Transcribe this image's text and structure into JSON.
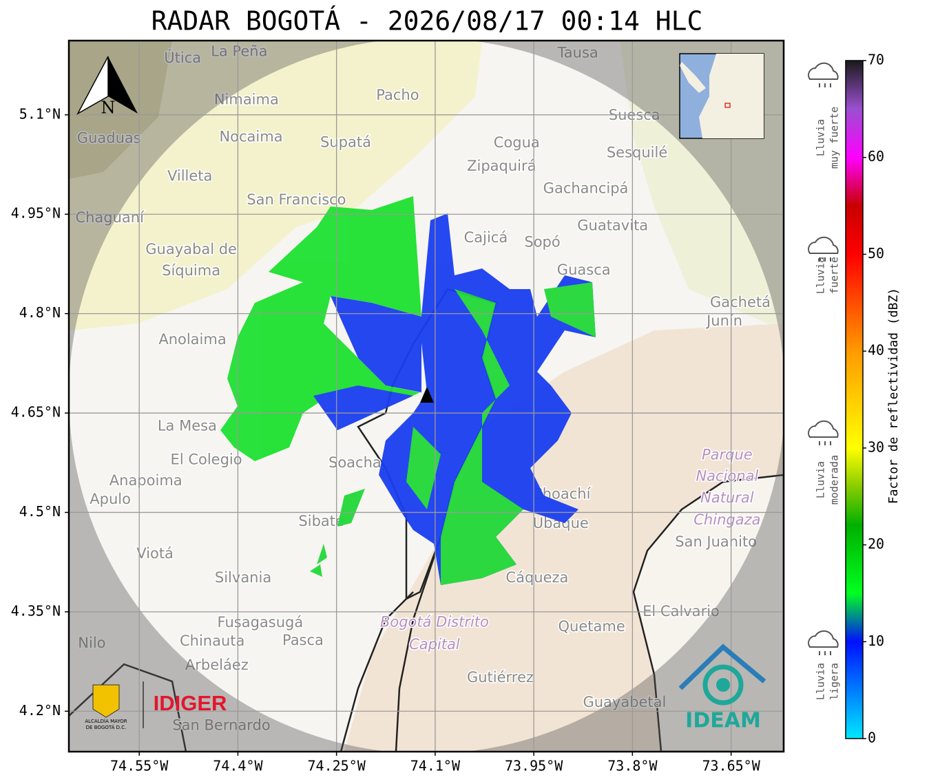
{
  "title": "RADAR BOGOTÁ - 2026/08/17 00:14 HLC",
  "map": {
    "lonlim": [
      -74.657,
      -73.57
    ],
    "latlim": [
      4.139,
      5.212
    ],
    "lon_ticks": [
      {
        "value": -74.55,
        "label": "74.55°W"
      },
      {
        "value": -74.4,
        "label": "74.4°W"
      },
      {
        "value": -74.25,
        "label": "74.25°W"
      },
      {
        "value": -74.1,
        "label": "74.1°W"
      },
      {
        "value": -73.95,
        "label": "73.95°W"
      },
      {
        "value": -73.8,
        "label": "73.8°W"
      },
      {
        "value": -73.65,
        "label": "73.65°W"
      }
    ],
    "lat_ticks": [
      {
        "value": 5.1,
        "label": "5.1°N"
      },
      {
        "value": 4.95,
        "label": "4.95°N"
      },
      {
        "value": 4.8,
        "label": "4.8°N"
      },
      {
        "value": 4.65,
        "label": "4.65°N"
      },
      {
        "value": 4.5,
        "label": "4.5°N"
      },
      {
        "value": 4.35,
        "label": "4.35°N"
      },
      {
        "value": 4.2,
        "label": "4.2°N"
      }
    ],
    "grid": true,
    "north_label": "N",
    "places": [
      {
        "name": "Útica",
        "lon": -74.484,
        "lat": 5.185
      },
      {
        "name": "La Peña",
        "lon": -74.398,
        "lat": 5.195
      },
      {
        "name": "Tausa",
        "lon": -73.883,
        "lat": 5.193
      },
      {
        "name": "Pacho",
        "lon": -74.157,
        "lat": 5.129
      },
      {
        "name": "Nimaima",
        "lon": -74.387,
        "lat": 5.122
      },
      {
        "name": "Guaduas",
        "lon": -74.596,
        "lat": 5.064
      },
      {
        "name": "Nocaima",
        "lon": -74.38,
        "lat": 5.066
      },
      {
        "name": "Supatá",
        "lon": -74.236,
        "lat": 5.058
      },
      {
        "name": "Cogua",
        "lon": -73.976,
        "lat": 5.057
      },
      {
        "name": "Suesca",
        "lon": -73.797,
        "lat": 5.099
      },
      {
        "name": "Zipaquirá",
        "lon": -73.999,
        "lat": 5.022
      },
      {
        "name": "Sesquilé",
        "lon": -73.793,
        "lat": 5.042
      },
      {
        "name": "Villeta",
        "lon": -74.473,
        "lat": 5.007
      },
      {
        "name": "Gachancipá",
        "lon": -73.871,
        "lat": 4.988
      },
      {
        "name": "San Francisco",
        "lon": -74.311,
        "lat": 4.971
      },
      {
        "name": "Chaguaní",
        "lon": -74.595,
        "lat": 4.944
      },
      {
        "name": "Guatavita",
        "lon": -73.83,
        "lat": 4.932
      },
      {
        "name": "Cajicá",
        "lon": -74.023,
        "lat": 4.914
      },
      {
        "name": "Sopó",
        "lon": -73.937,
        "lat": 4.907
      },
      {
        "name": "Guayabal de",
        "lon": -74.471,
        "lat": 4.896
      },
      {
        "name": "Síquima",
        "lon": -74.471,
        "lat": 4.864
      },
      {
        "name": "Guasca",
        "lon": -73.874,
        "lat": 4.865
      },
      {
        "name": "Gachetá",
        "lon": -73.636,
        "lat": 4.816
      },
      {
        "name": "Junín",
        "lon": -73.66,
        "lat": 4.788
      },
      {
        "name": "Anolaima",
        "lon": -74.469,
        "lat": 4.76
      },
      {
        "name": "La Mesa",
        "lon": -74.477,
        "lat": 4.63
      },
      {
        "name": "El Colegio",
        "lon": -74.448,
        "lat": 4.579
      },
      {
        "name": "Soacha",
        "lon": -74.222,
        "lat": 4.574
      },
      {
        "name": "Anapoima",
        "lon": -74.54,
        "lat": 4.547
      },
      {
        "name": "Apulo",
        "lon": -74.594,
        "lat": 4.519
      },
      {
        "name": "Choachí",
        "lon": -73.908,
        "lat": 4.527
      },
      {
        "name": "Ubaque",
        "lon": -73.909,
        "lat": 4.483
      },
      {
        "name": "Sibaté",
        "lon": -74.273,
        "lat": 4.486
      },
      {
        "name": "San Juanito",
        "lon": -73.673,
        "lat": 4.455
      },
      {
        "name": "Viotá",
        "lon": -74.526,
        "lat": 4.437
      },
      {
        "name": "Silvania",
        "lon": -74.392,
        "lat": 4.401
      },
      {
        "name": "Cáqueza",
        "lon": -73.945,
        "lat": 4.401
      },
      {
        "name": "El Calvario",
        "lon": -73.726,
        "lat": 4.35
      },
      {
        "name": "Fusagasugá",
        "lon": -74.366,
        "lat": 4.333
      },
      {
        "name": "Quetame",
        "lon": -73.862,
        "lat": 4.327
      },
      {
        "name": "Nilo",
        "lon": -74.622,
        "lat": 4.302
      },
      {
        "name": "Chinauta",
        "lon": -74.439,
        "lat": 4.305
      },
      {
        "name": "Pasca",
        "lon": -74.301,
        "lat": 4.306
      },
      {
        "name": "Arbeláez",
        "lon": -74.432,
        "lat": 4.269
      },
      {
        "name": "Gutiérrez",
        "lon": -74.001,
        "lat": 4.25
      },
      {
        "name": "Guayabetal",
        "lon": -73.812,
        "lat": 4.213
      },
      {
        "name": "San Bernardo",
        "lon": -74.425,
        "lat": 4.178
      },
      {
        "name": "Bogotá Distrito",
        "lon": -74.101,
        "lat": 4.334,
        "style": "park"
      },
      {
        "name": "Capital",
        "lon": -74.101,
        "lat": 4.3,
        "style": "park"
      },
      {
        "name": "Parque",
        "lon": -73.656,
        "lat": 4.586,
        "style": "park"
      },
      {
        "name": "Nacional",
        "lon": -73.656,
        "lat": 4.554,
        "style": "park"
      },
      {
        "name": "Natural",
        "lon": -73.656,
        "lat": 4.521,
        "style": "park"
      },
      {
        "name": "Chingaza",
        "lon": -73.656,
        "lat": 4.488,
        "style": "park"
      }
    ]
  },
  "colorbar": {
    "label": "Factor de reflectividad (dBZ)",
    "lim": [
      0,
      70
    ],
    "ticks": [
      0,
      10,
      20,
      30,
      40,
      50,
      60,
      70
    ],
    "stops": [
      {
        "value": 0,
        "color": "#00e8ff"
      },
      {
        "value": 10,
        "color": "#0010ff"
      },
      {
        "value": 15,
        "color": "#00ff20"
      },
      {
        "value": 22,
        "color": "#00b000"
      },
      {
        "value": 26,
        "color": "#88cc00"
      },
      {
        "value": 30,
        "color": "#ffff00"
      },
      {
        "value": 40,
        "color": "#ff9a00"
      },
      {
        "value": 50,
        "color": "#ff0000"
      },
      {
        "value": 55,
        "color": "#c80000"
      },
      {
        "value": 60,
        "color": "#ff00ff"
      },
      {
        "value": 65,
        "color": "#9a50d0"
      },
      {
        "value": 70,
        "color": "#1a1a1a"
      }
    ],
    "categories": [
      [
        "Lluvia",
        "muy fuerte"
      ],
      [
        "Lluvia",
        "fuerte"
      ],
      [
        "Lluvia",
        "moderada"
      ],
      [
        "Lluvia",
        "ligera"
      ]
    ]
  },
  "logos": {
    "idiger": "IDIGER",
    "ideam": "IDEAM",
    "alcaldia": [
      "ALCALDÍA MAYOR",
      "DE BOGOTÁ D.C."
    ]
  }
}
